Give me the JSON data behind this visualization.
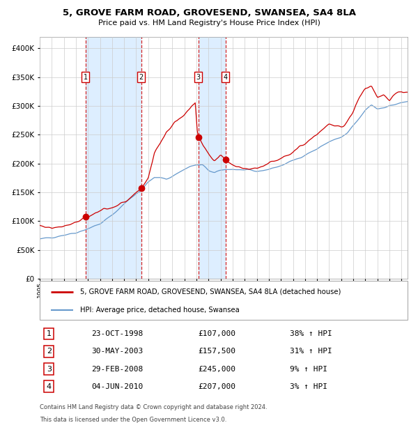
{
  "title": "5, GROVE FARM ROAD, GROVESEND, SWANSEA, SA4 8LA",
  "subtitle": "Price paid vs. HM Land Registry's House Price Index (HPI)",
  "legend_label_red": "5, GROVE FARM ROAD, GROVESEND, SWANSEA, SA4 8LA (detached house)",
  "legend_label_blue": "HPI: Average price, detached house, Swansea",
  "footer1": "Contains HM Land Registry data © Crown copyright and database right 2024.",
  "footer2": "This data is licensed under the Open Government Licence v3.0.",
  "transactions": [
    {
      "num": 1,
      "date": "23-OCT-1998",
      "price": 107000,
      "hpi_pct": "38% ↑ HPI",
      "year_x": 1998.81
    },
    {
      "num": 2,
      "date": "30-MAY-2003",
      "price": 157500,
      "hpi_pct": "31% ↑ HPI",
      "year_x": 2003.41
    },
    {
      "num": 3,
      "date": "29-FEB-2008",
      "price": 245000,
      "hpi_pct": "9% ↑ HPI",
      "year_x": 2008.16
    },
    {
      "num": 4,
      "date": "04-JUN-2010",
      "price": 207000,
      "hpi_pct": "3% ↑ HPI",
      "year_x": 2010.42
    }
  ],
  "ylim": [
    0,
    420000
  ],
  "xlim_start": 1995.0,
  "xlim_end": 2025.5,
  "red_color": "#cc0000",
  "blue_color": "#6699cc",
  "shade_color": "#ddeeff",
  "grid_color": "#cccccc",
  "background_color": "#ffffff",
  "hpi_blue_waypoints_x": [
    1995.0,
    1996.0,
    1997.0,
    1998.0,
    1999.0,
    2000.0,
    2001.0,
    2002.0,
    2003.0,
    2003.5,
    2004.0,
    2004.5,
    2005.0,
    2005.5,
    2006.0,
    2007.0,
    2007.5,
    2008.0,
    2008.5,
    2009.0,
    2009.5,
    2010.0,
    2010.5,
    2011.0,
    2012.0,
    2013.0,
    2014.0,
    2015.0,
    2016.0,
    2017.0,
    2018.0,
    2019.0,
    2020.0,
    2020.5,
    2021.0,
    2021.5,
    2022.0,
    2022.5,
    2023.0,
    2024.0,
    2025.0,
    2025.5
  ],
  "hpi_blue_waypoints_y": [
    68000,
    72000,
    76000,
    80000,
    87000,
    95000,
    110000,
    130000,
    148000,
    155000,
    168000,
    175000,
    175000,
    173000,
    178000,
    190000,
    195000,
    197000,
    197000,
    188000,
    183000,
    188000,
    190000,
    190000,
    188000,
    186000,
    190000,
    196000,
    205000,
    215000,
    225000,
    238000,
    245000,
    252000,
    265000,
    278000,
    292000,
    302000,
    295000,
    300000,
    305000,
    308000
  ],
  "hpi_red_waypoints_x": [
    1995.0,
    1996.0,
    1997.0,
    1998.0,
    1998.81,
    1999.5,
    2000.0,
    2001.0,
    2002.0,
    2003.0,
    2003.41,
    2004.0,
    2004.5,
    2005.0,
    2005.5,
    2006.0,
    2006.5,
    2007.0,
    2007.5,
    2007.9,
    2008.1,
    2008.16,
    2008.5,
    2009.0,
    2009.5,
    2010.0,
    2010.42,
    2010.5,
    2011.0,
    2011.5,
    2012.0,
    2013.0,
    2014.0,
    2015.0,
    2016.0,
    2017.0,
    2018.0,
    2019.0,
    2020.0,
    2020.5,
    2021.0,
    2021.5,
    2022.0,
    2022.5,
    2023.0,
    2023.5,
    2024.0,
    2024.5,
    2025.0,
    2025.5
  ],
  "hpi_red_waypoints_y": [
    92000,
    88000,
    92000,
    98000,
    107000,
    112000,
    118000,
    122000,
    133000,
    148000,
    157500,
    175000,
    218000,
    235000,
    255000,
    265000,
    278000,
    285000,
    295000,
    305000,
    245000,
    245000,
    232000,
    215000,
    205000,
    215000,
    207000,
    205000,
    198000,
    195000,
    190000,
    192000,
    200000,
    210000,
    220000,
    235000,
    252000,
    268000,
    262000,
    272000,
    292000,
    315000,
    330000,
    335000,
    315000,
    320000,
    310000,
    320000,
    325000,
    322000
  ]
}
